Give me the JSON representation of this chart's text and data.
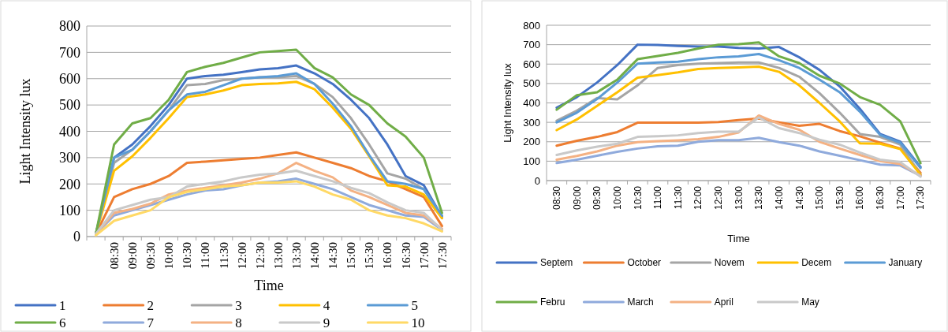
{
  "chart_data": [
    {
      "type": "line",
      "xlabel": "Time",
      "ylabel": "Light Intensity lux",
      "categories": [
        null,
        "08:30",
        "09:00",
        "09:30",
        "10:00",
        "10:30",
        "11:00",
        "11:30",
        "12:00",
        "12:30",
        "13:00",
        "13:30",
        "14:00",
        "14:30",
        "15:00",
        "15:30",
        "16:00",
        "16:30",
        "17:00",
        "17:30"
      ],
      "ylim": [
        0,
        800
      ],
      "yticks": [
        0,
        100,
        200,
        300,
        400,
        500,
        600,
        700,
        800
      ],
      "grid": "y",
      "legend": "bottom",
      "series": [
        {
          "name": "1",
          "color": "#4472c4",
          "values": [
            10,
            300,
            350,
            420,
            500,
            600,
            610,
            615,
            625,
            635,
            640,
            650,
            620,
            580,
            520,
            450,
            350,
            230,
            195,
            75
          ]
        },
        {
          "name": "2",
          "color": "#ed7d31",
          "values": [
            10,
            150,
            180,
            200,
            230,
            280,
            285,
            290,
            295,
            300,
            310,
            320,
            300,
            280,
            260,
            230,
            210,
            180,
            150,
            40
          ]
        },
        {
          "name": "3",
          "color": "#a5a5a5",
          "values": [
            10,
            280,
            330,
            400,
            480,
            575,
            580,
            595,
            600,
            605,
            605,
            610,
            580,
            530,
            450,
            350,
            240,
            220,
            180,
            70
          ]
        },
        {
          "name": "4",
          "color": "#ffc000",
          "values": [
            10,
            250,
            305,
            375,
            450,
            530,
            540,
            555,
            575,
            580,
            582,
            588,
            560,
            490,
            410,
            305,
            195,
            190,
            160,
            70
          ]
        },
        {
          "name": "5",
          "color": "#5b9bd5",
          "values": [
            10,
            300,
            330,
            400,
            480,
            540,
            550,
            575,
            600,
            605,
            610,
            620,
            580,
            505,
            420,
            310,
            210,
            200,
            180,
            80
          ]
        },
        {
          "name": "6",
          "color": "#70ad47",
          "values": [
            10,
            350,
            430,
            450,
            520,
            625,
            645,
            660,
            680,
            700,
            705,
            710,
            640,
            605,
            540,
            500,
            430,
            380,
            300,
            90
          ]
        },
        {
          "name": "7",
          "color": "#8faadc",
          "values": [
            10,
            80,
            100,
            120,
            140,
            160,
            175,
            180,
            195,
            205,
            210,
            220,
            200,
            180,
            150,
            120,
            100,
            80,
            75,
            25
          ]
        },
        {
          "name": "8",
          "color": "#f4b183",
          "values": [
            10,
            90,
            105,
            125,
            160,
            175,
            185,
            195,
            205,
            220,
            240,
            280,
            250,
            225,
            175,
            150,
            120,
            90,
            80,
            30
          ]
        },
        {
          "name": "9",
          "color": "#c9c9c9",
          "values": [
            10,
            100,
            120,
            140,
            150,
            190,
            200,
            210,
            225,
            235,
            240,
            250,
            230,
            210,
            185,
            165,
            130,
            100,
            90,
            25
          ]
        },
        {
          "name": "10",
          "color": "#ffd966",
          "values": [
            5,
            60,
            80,
            100,
            150,
            170,
            180,
            190,
            195,
            205,
            205,
            210,
            190,
            160,
            140,
            100,
            80,
            70,
            50,
            20
          ]
        }
      ]
    },
    {
      "type": "line",
      "xlabel": "Time",
      "ylabel": "Light Intensity lux",
      "categories": [
        "08:30",
        "09:00",
        "09:30",
        "10:00",
        "10:30",
        "11:00",
        "11:30",
        "12:00",
        "12:30",
        "13:00",
        "13:30",
        "14:00",
        "14:30",
        "15:00",
        "15:30",
        "16:00",
        "16:30",
        "17:00",
        "17:30"
      ],
      "ylim": [
        0,
        800
      ],
      "yticks": [
        0,
        100,
        200,
        300,
        400,
        500,
        600,
        700,
        800
      ],
      "grid": "y",
      "legend": "bottom",
      "series": [
        {
          "name": "Septem",
          "color": "#4472c4",
          "values": [
            375,
            430,
            505,
            595,
            700,
            698,
            693,
            690,
            690,
            683,
            680,
            688,
            635,
            570,
            485,
            370,
            240,
            200,
            70
          ]
        },
        {
          "name": "October",
          "color": "#ed7d31",
          "values": [
            180,
            205,
            225,
            250,
            298,
            298,
            298,
            298,
            302,
            312,
            320,
            300,
            282,
            292,
            255,
            228,
            195,
            165,
            40
          ]
        },
        {
          "name": "Novem",
          "color": "#a5a5a5",
          "values": [
            308,
            360,
            425,
            418,
            490,
            580,
            595,
            602,
            605,
            608,
            608,
            580,
            535,
            450,
            350,
            240,
            225,
            185,
            30
          ]
        },
        {
          "name": "Decem",
          "color": "#ffc000",
          "values": [
            260,
            315,
            385,
            455,
            530,
            543,
            557,
            575,
            580,
            583,
            587,
            560,
            490,
            400,
            305,
            192,
            190,
            162,
            30
          ]
        },
        {
          "name": "January",
          "color": "#5b9bd5",
          "values": [
            300,
            350,
            420,
            505,
            602,
            608,
            612,
            625,
            635,
            640,
            652,
            620,
            580,
            520,
            455,
            355,
            235,
            195,
            65
          ]
        },
        {
          "name": "Febru",
          "color": "#70ad47",
          "values": [
            365,
            440,
            455,
            520,
            625,
            642,
            658,
            680,
            700,
            703,
            712,
            640,
            605,
            540,
            500,
            430,
            390,
            305,
            90
          ]
        },
        {
          "name": "March",
          "color": "#8faadc",
          "values": [
            90,
            108,
            128,
            148,
            165,
            177,
            180,
            200,
            208,
            208,
            220,
            198,
            180,
            150,
            128,
            105,
            82,
            78,
            25
          ]
        },
        {
          "name": "April",
          "color": "#f4b183",
          "values": [
            108,
            127,
            150,
            180,
            198,
            203,
            207,
            213,
            225,
            248,
            335,
            292,
            262,
            200,
            165,
            132,
            100,
            85,
            25
          ]
        },
        {
          "name": "May",
          "color": "#c9c9c9",
          "values": [
            132,
            155,
            175,
            190,
            225,
            228,
            233,
            245,
            252,
            252,
            325,
            270,
            245,
            210,
            185,
            145,
            108,
            95,
            20
          ]
        }
      ]
    }
  ]
}
